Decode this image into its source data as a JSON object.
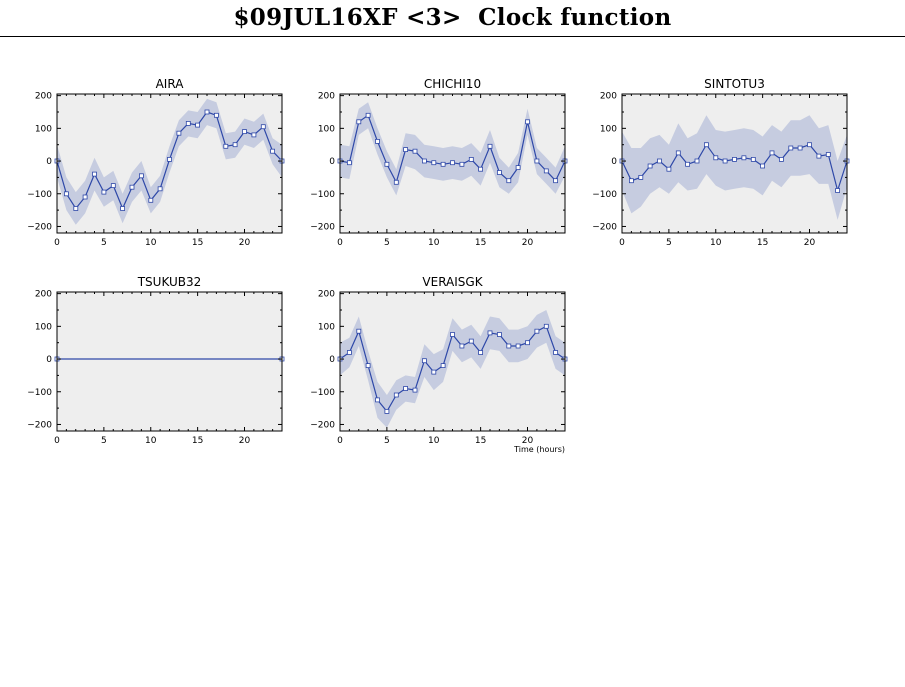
{
  "page": {
    "title": "$09JUL16XF <3>  Clock function"
  },
  "colors": {
    "plot_background": "#eeeeee",
    "band": "#c6cce0",
    "line": "#2e48a8",
    "axis": "#000000"
  },
  "chart_data": [
    {
      "type": "line",
      "title": "AIRA",
      "xlabel": "",
      "ylabel": "",
      "xlim": [
        0,
        24
      ],
      "ylim": [
        -220,
        205
      ],
      "xticks": [
        0,
        5,
        10,
        15,
        20
      ],
      "yticks": [
        -200,
        -100,
        0,
        100,
        200
      ],
      "x": [
        0,
        1,
        2,
        3,
        4,
        5,
        6,
        7,
        8,
        9,
        10,
        11,
        12,
        13,
        14,
        15,
        16,
        17,
        18,
        19,
        20,
        21,
        22,
        23,
        24
      ],
      "values": [
        0,
        -100,
        -145,
        -110,
        -40,
        -95,
        -75,
        -145,
        -80,
        -45,
        -120,
        -85,
        5,
        85,
        115,
        110,
        150,
        140,
        45,
        50,
        90,
        80,
        105,
        30,
        0
      ],
      "band_lower": [
        -50,
        -150,
        -195,
        -160,
        -90,
        -140,
        -120,
        -190,
        -125,
        -90,
        -160,
        -125,
        -35,
        45,
        75,
        70,
        110,
        100,
        5,
        10,
        50,
        40,
        65,
        -10,
        -50
      ],
      "band_upper": [
        50,
        -50,
        -95,
        -60,
        10,
        -50,
        -30,
        -100,
        -35,
        0,
        -80,
        -45,
        45,
        125,
        155,
        150,
        190,
        180,
        85,
        90,
        130,
        120,
        145,
        70,
        50
      ]
    },
    {
      "type": "line",
      "title": "CHICHI10",
      "xlabel": "",
      "ylabel": "",
      "xlim": [
        0,
        24
      ],
      "ylim": [
        -220,
        205
      ],
      "xticks": [
        0,
        5,
        10,
        15,
        20
      ],
      "yticks": [
        -200,
        -100,
        0,
        100,
        200
      ],
      "x": [
        0,
        1,
        2,
        3,
        4,
        5,
        6,
        7,
        8,
        9,
        10,
        11,
        12,
        13,
        14,
        15,
        16,
        17,
        18,
        19,
        20,
        21,
        22,
        23,
        24
      ],
      "values": [
        0,
        -5,
        120,
        140,
        60,
        -10,
        -65,
        35,
        30,
        0,
        -5,
        -10,
        -5,
        -10,
        5,
        -25,
        45,
        -35,
        -60,
        -20,
        120,
        0,
        -30,
        -60,
        0
      ],
      "band_lower": [
        -50,
        -55,
        80,
        100,
        20,
        -50,
        -105,
        -15,
        -25,
        -50,
        -55,
        -60,
        -55,
        -60,
        -45,
        -75,
        -5,
        -80,
        -100,
        -65,
        80,
        -40,
        -70,
        -100,
        -45
      ],
      "band_upper": [
        50,
        45,
        160,
        180,
        100,
        30,
        -25,
        85,
        80,
        50,
        45,
        40,
        45,
        40,
        55,
        25,
        95,
        10,
        -20,
        25,
        160,
        40,
        10,
        -20,
        45
      ]
    },
    {
      "type": "line",
      "title": "SINTOTU3",
      "xlabel": "",
      "ylabel": "",
      "xlim": [
        0,
        24
      ],
      "ylim": [
        -220,
        205
      ],
      "xticks": [
        0,
        5,
        10,
        15,
        20
      ],
      "yticks": [
        -200,
        -100,
        0,
        100,
        200
      ],
      "x": [
        0,
        1,
        2,
        3,
        4,
        5,
        6,
        7,
        8,
        9,
        10,
        11,
        12,
        13,
        14,
        15,
        16,
        17,
        18,
        19,
        20,
        21,
        22,
        23,
        24
      ],
      "values": [
        0,
        -60,
        -50,
        -15,
        0,
        -25,
        25,
        -10,
        0,
        50,
        10,
        0,
        5,
        10,
        5,
        -15,
        25,
        5,
        40,
        40,
        50,
        15,
        20,
        -90,
        0
      ],
      "band_lower": [
        -90,
        -160,
        -140,
        -100,
        -80,
        -100,
        -65,
        -90,
        -85,
        -40,
        -75,
        -90,
        -85,
        -80,
        -85,
        -105,
        -60,
        -80,
        -45,
        -45,
        -40,
        -70,
        -70,
        -180,
        -80
      ],
      "band_upper": [
        90,
        40,
        40,
        70,
        80,
        50,
        115,
        70,
        85,
        140,
        95,
        90,
        95,
        100,
        95,
        75,
        110,
        90,
        125,
        125,
        140,
        100,
        110,
        0,
        80
      ]
    },
    {
      "type": "line",
      "title": "TSUKUB32",
      "xlabel": "",
      "ylabel": "",
      "xlim": [
        0,
        24
      ],
      "ylim": [
        -220,
        205
      ],
      "xticks": [
        0,
        5,
        10,
        15,
        20
      ],
      "yticks": [
        -200,
        -100,
        0,
        100,
        200
      ],
      "x": [
        0,
        24
      ],
      "values": [
        0,
        0
      ],
      "band_lower": [
        0,
        0
      ],
      "band_upper": [
        0,
        0
      ]
    },
    {
      "type": "line",
      "title": "VERAISGK",
      "xlabel": "Time (hours)",
      "ylabel": "",
      "xlim": [
        0,
        24
      ],
      "ylim": [
        -220,
        205
      ],
      "xticks": [
        0,
        5,
        10,
        15,
        20
      ],
      "yticks": [
        -200,
        -100,
        0,
        100,
        200
      ],
      "x": [
        0,
        1,
        2,
        3,
        4,
        5,
        6,
        7,
        8,
        9,
        10,
        11,
        12,
        13,
        14,
        15,
        16,
        17,
        18,
        19,
        20,
        21,
        22,
        23,
        24
      ],
      "values": [
        0,
        20,
        85,
        -20,
        -125,
        -160,
        -110,
        -90,
        -95,
        -5,
        -40,
        -20,
        75,
        40,
        55,
        20,
        80,
        75,
        40,
        40,
        50,
        85,
        100,
        20,
        0
      ],
      "band_lower": [
        -50,
        -25,
        40,
        -65,
        -180,
        -210,
        -155,
        -130,
        -135,
        -55,
        -95,
        -70,
        25,
        -10,
        5,
        -30,
        30,
        25,
        -10,
        -10,
        0,
        35,
        50,
        -30,
        -50
      ],
      "band_upper": [
        50,
        65,
        130,
        25,
        -70,
        -110,
        -65,
        -50,
        -55,
        45,
        15,
        30,
        125,
        90,
        105,
        70,
        130,
        125,
        90,
        90,
        100,
        135,
        150,
        70,
        50
      ]
    }
  ]
}
